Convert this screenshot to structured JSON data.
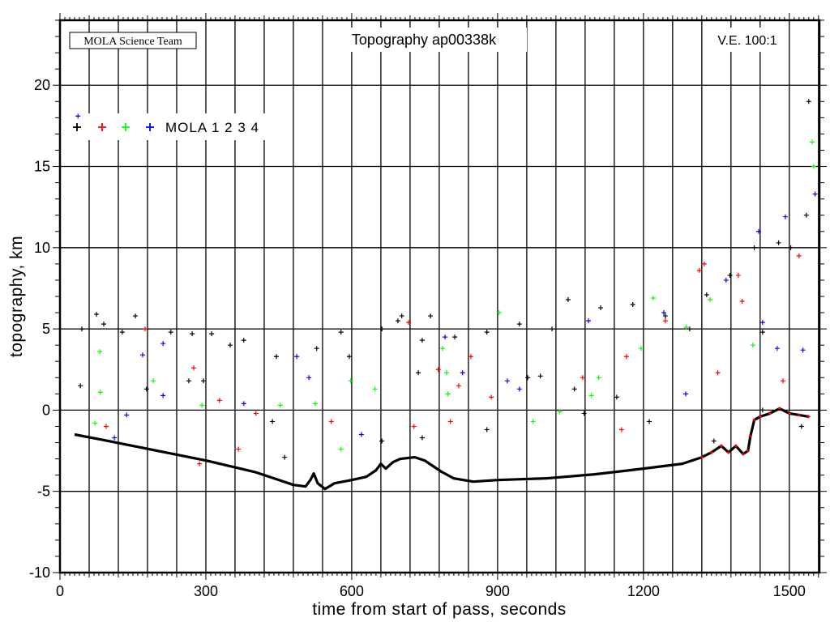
{
  "chart_data": {
    "type": "scatter",
    "title": "Topography ap00338k",
    "credit": "MOLA Science Team",
    "vertical_exaggeration": "V.E. 100:1",
    "xlabel": "time from start of pass, seconds",
    "ylabel": "topography, km",
    "xlim": [
      0,
      1562
    ],
    "ylim": [
      -10,
      24
    ],
    "xticks": [
      "0",
      "300",
      "600",
      "900",
      "1200",
      "1500"
    ],
    "xtick_values": [
      0,
      300,
      600,
      900,
      1200,
      1500
    ],
    "yticks": [
      "-10",
      "-5",
      "0",
      "5",
      "10",
      "15",
      "20"
    ],
    "ytick_values": [
      -10,
      -5,
      0,
      5,
      10,
      15,
      20
    ],
    "grid_x_step": 60,
    "grid_y_step": 5,
    "legend": {
      "placement": "top-left",
      "label": "MOLA 1 2 3 4",
      "colors": [
        "#000000",
        "#ff0000",
        "#00ff00",
        "#0000ff"
      ]
    },
    "ground_profile": [
      [
        30,
        -1.5
      ],
      [
        100,
        -1.9
      ],
      [
        200,
        -2.5
      ],
      [
        300,
        -3.1
      ],
      [
        400,
        -3.8
      ],
      [
        450,
        -4.3
      ],
      [
        480,
        -4.6
      ],
      [
        505,
        -4.7
      ],
      [
        515,
        -4.3
      ],
      [
        522,
        -3.9
      ],
      [
        530,
        -4.5
      ],
      [
        545,
        -4.85
      ],
      [
        565,
        -4.5
      ],
      [
        600,
        -4.3
      ],
      [
        630,
        -4.1
      ],
      [
        650,
        -3.7
      ],
      [
        660,
        -3.3
      ],
      [
        670,
        -3.6
      ],
      [
        685,
        -3.2
      ],
      [
        700,
        -3.0
      ],
      [
        730,
        -2.9
      ],
      [
        750,
        -3.1
      ],
      [
        765,
        -3.4
      ],
      [
        785,
        -3.8
      ],
      [
        810,
        -4.2
      ],
      [
        850,
        -4.4
      ],
      [
        900,
        -4.3
      ],
      [
        1000,
        -4.2
      ],
      [
        1100,
        -3.95
      ],
      [
        1200,
        -3.6
      ],
      [
        1280,
        -3.3
      ],
      [
        1320,
        -2.9
      ],
      [
        1340,
        -2.6
      ],
      [
        1360,
        -2.2
      ],
      [
        1375,
        -2.6
      ],
      [
        1390,
        -2.2
      ],
      [
        1405,
        -2.7
      ],
      [
        1415,
        -2.5
      ],
      [
        1420,
        -1.6
      ],
      [
        1428,
        -0.6
      ],
      [
        1440,
        -0.4
      ],
      [
        1460,
        -0.2
      ],
      [
        1480,
        0.1
      ],
      [
        1500,
        -0.2
      ],
      [
        1520,
        -0.3
      ],
      [
        1540,
        -0.4
      ]
    ],
    "points": [
      [
        37,
        18.1,
        4
      ],
      [
        42,
        1.5,
        1
      ],
      [
        45,
        5.0,
        1
      ],
      [
        75,
        5.9,
        1
      ],
      [
        82,
        3.6,
        3
      ],
      [
        83,
        1.1,
        3
      ],
      [
        72,
        -0.8,
        3
      ],
      [
        95,
        -1.0,
        2
      ],
      [
        112,
        -1.7,
        4
      ],
      [
        137,
        -0.3,
        4
      ],
      [
        155,
        5.8,
        1
      ],
      [
        170,
        3.4,
        4
      ],
      [
        175,
        5.0,
        2
      ],
      [
        192,
        1.8,
        3
      ],
      [
        212,
        4.1,
        4
      ],
      [
        212,
        0.9,
        4
      ],
      [
        265,
        1.8,
        1
      ],
      [
        275,
        2.6,
        2
      ],
      [
        292,
        0.3,
        3
      ],
      [
        287,
        -3.3,
        2
      ],
      [
        328,
        0.6,
        2
      ],
      [
        350,
        4.0,
        1
      ],
      [
        367,
        -2.4,
        2
      ],
      [
        378,
        0.4,
        4
      ],
      [
        403,
        -0.2,
        2
      ],
      [
        437,
        -0.7,
        1
      ],
      [
        453,
        0.3,
        3
      ],
      [
        487,
        3.3,
        4
      ],
      [
        512,
        2.0,
        4
      ],
      [
        525,
        0.4,
        3
      ],
      [
        558,
        -0.7,
        2
      ],
      [
        578,
        -2.4,
        3
      ],
      [
        598,
        1.8,
        3
      ],
      [
        620,
        -1.5,
        4
      ],
      [
        648,
        1.3,
        3
      ],
      [
        703,
        5.8,
        1
      ],
      [
        717,
        5.4,
        2
      ],
      [
        728,
        -1.0,
        2
      ],
      [
        762,
        5.8,
        1
      ],
      [
        778,
        2.5,
        2
      ],
      [
        787,
        3.8,
        3
      ],
      [
        792,
        4.5,
        4
      ],
      [
        795,
        2.3,
        3
      ],
      [
        798,
        1.0,
        3
      ],
      [
        803,
        -0.7,
        2
      ],
      [
        820,
        1.5,
        2
      ],
      [
        828,
        2.3,
        4
      ],
      [
        845,
        3.3,
        2
      ],
      [
        887,
        0.8,
        2
      ],
      [
        903,
        6.0,
        3
      ],
      [
        920,
        1.8,
        4
      ],
      [
        945,
        1.3,
        4
      ],
      [
        973,
        -0.7,
        3
      ],
      [
        988,
        2.1,
        1
      ],
      [
        1028,
        -0.1,
        3
      ],
      [
        1058,
        1.3,
        1
      ],
      [
        1075,
        2.0,
        2
      ],
      [
        1087,
        5.5,
        4
      ],
      [
        1093,
        0.9,
        3
      ],
      [
        1108,
        2.0,
        3
      ],
      [
        1155,
        -1.2,
        2
      ],
      [
        1165,
        3.3,
        2
      ],
      [
        1195,
        3.8,
        3
      ],
      [
        1220,
        6.9,
        3
      ],
      [
        1242,
        6.0,
        4
      ],
      [
        1245,
        5.5,
        2
      ],
      [
        1288,
        5.1,
        3
      ],
      [
        1287,
        1.0,
        4
      ],
      [
        1315,
        8.6,
        2
      ],
      [
        1325,
        9.0,
        2
      ],
      [
        1337,
        6.8,
        3
      ],
      [
        1353,
        2.3,
        2
      ],
      [
        1370,
        8.0,
        4
      ],
      [
        1395,
        8.3,
        2
      ],
      [
        1403,
        6.7,
        2
      ],
      [
        1425,
        4.0,
        3
      ],
      [
        1445,
        5.4,
        4
      ],
      [
        1437,
        11.0,
        4
      ],
      [
        1492,
        11.9,
        4
      ],
      [
        1503,
        10.0,
        1
      ],
      [
        1520,
        9.5,
        2
      ],
      [
        1528,
        3.7,
        4
      ],
      [
        1540,
        19.0,
        1
      ],
      [
        1547,
        16.5,
        3
      ],
      [
        1553,
        13.3,
        4
      ],
      [
        1550,
        15.0,
        3
      ],
      [
        1487,
        1.8,
        2
      ],
      [
        1475,
        3.8,
        4
      ],
      [
        90,
        5.3,
        1
      ],
      [
        128,
        4.8,
        1
      ],
      [
        228,
        4.8,
        1
      ],
      [
        272,
        4.7,
        1
      ],
      [
        312,
        4.7,
        1
      ],
      [
        378,
        4.3,
        1
      ],
      [
        445,
        3.3,
        1
      ],
      [
        528,
        3.8,
        1
      ],
      [
        578,
        4.8,
        1
      ],
      [
        662,
        5.0,
        1
      ],
      [
        695,
        5.5,
        1
      ],
      [
        745,
        4.3,
        1
      ],
      [
        812,
        4.5,
        1
      ],
      [
        878,
        4.8,
        1
      ],
      [
        945,
        5.3,
        1
      ],
      [
        1012,
        5.0,
        1
      ],
      [
        1045,
        6.8,
        1
      ],
      [
        1112,
        6.3,
        1
      ],
      [
        1178,
        6.5,
        1
      ],
      [
        1245,
        5.8,
        1
      ],
      [
        1295,
        5.0,
        1
      ],
      [
        1378,
        8.3,
        1
      ],
      [
        1428,
        10.0,
        1
      ],
      [
        1478,
        10.3,
        1
      ],
      [
        1445,
        4.8,
        1
      ],
      [
        462,
        -2.9,
        1
      ],
      [
        662,
        -1.9,
        1
      ],
      [
        745,
        -1.7,
        1
      ],
      [
        878,
        -1.2,
        1
      ],
      [
        1078,
        -0.2,
        1
      ],
      [
        1212,
        -0.7,
        1
      ],
      [
        1345,
        -1.9,
        1
      ],
      [
        1445,
        0.0,
        1
      ],
      [
        295,
        1.8,
        1
      ],
      [
        178,
        1.3,
        1
      ],
      [
        595,
        3.3,
        1
      ],
      [
        737,
        2.3,
        1
      ],
      [
        962,
        2.0,
        1
      ],
      [
        1145,
        0.8,
        1
      ],
      [
        1535,
        12.0,
        1
      ],
      [
        1525,
        -1.0,
        1
      ],
      [
        1330,
        7.1,
        1
      ]
    ]
  }
}
